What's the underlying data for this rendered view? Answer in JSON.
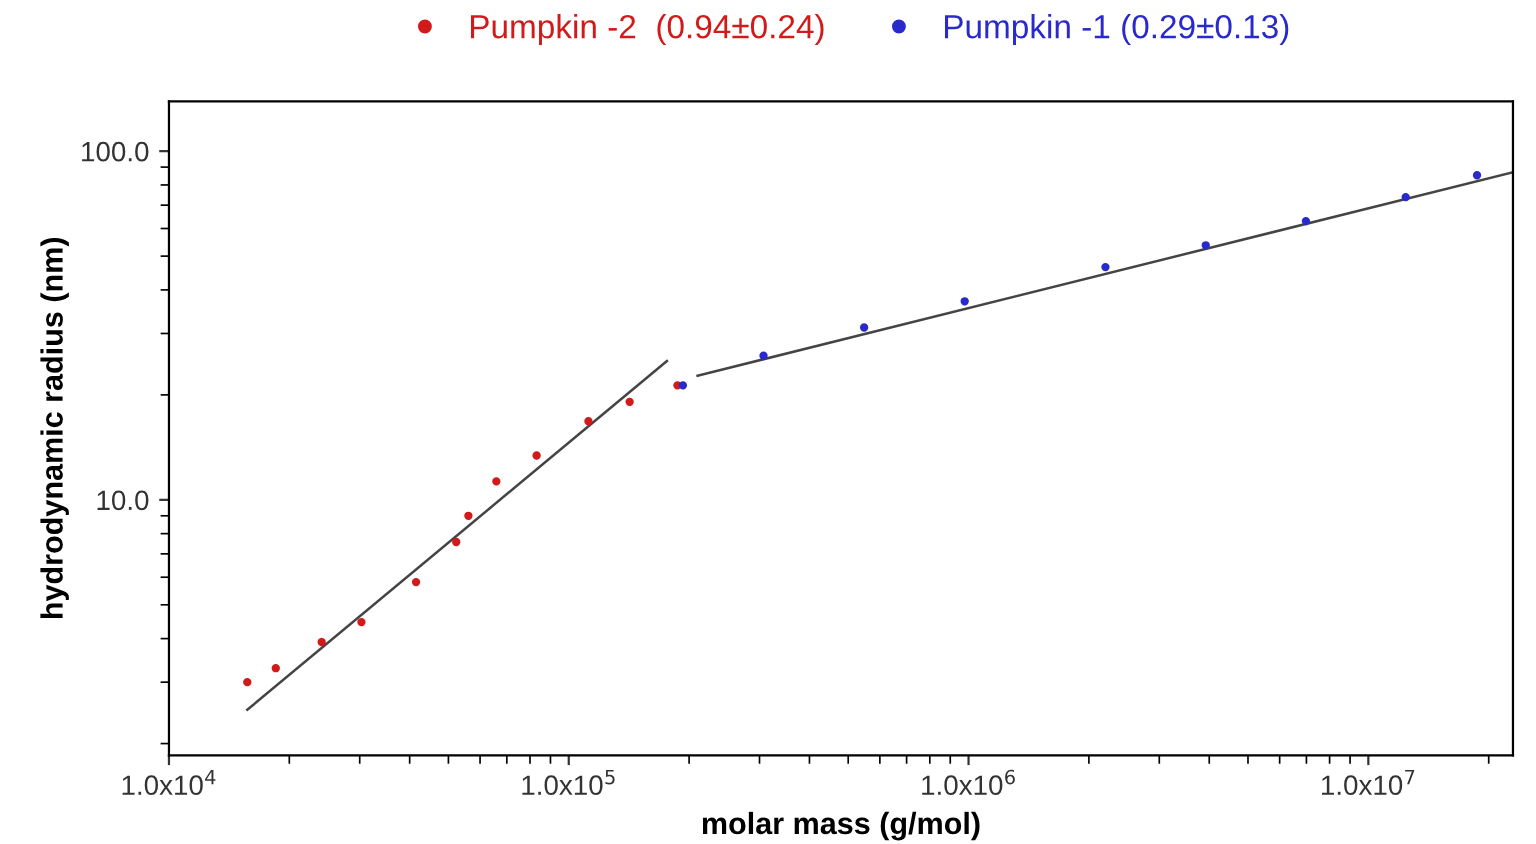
{
  "chart_data": {
    "type": "scatter",
    "xlabel": "molar mass (g/mol)",
    "ylabel": "hydrodynamic radius (nm)",
    "log": "xy",
    "grid": false,
    "legend": "top",
    "marker": "circle",
    "xlim": [
      10000,
      23000000
    ],
    "ylim": [
      1.85,
      139
    ],
    "xticks": [
      {
        "value": 10000,
        "label": "1.0x10$^{4}$"
      },
      {
        "value": 20000,
        "label": null
      },
      {
        "value": 30000,
        "label": null
      },
      {
        "value": 40000,
        "label": null
      },
      {
        "value": 50000,
        "label": null
      },
      {
        "value": 60000,
        "label": null
      },
      {
        "value": 70000,
        "label": null
      },
      {
        "value": 80000,
        "label": null
      },
      {
        "value": 90000,
        "label": null
      },
      {
        "value": 100000,
        "label": "1.0x10$^{5}$"
      },
      {
        "value": 200000,
        "label": null
      },
      {
        "value": 300000,
        "label": null
      },
      {
        "value": 400000,
        "label": null
      },
      {
        "value": 500000,
        "label": null
      },
      {
        "value": 600000,
        "label": null
      },
      {
        "value": 700000,
        "label": null
      },
      {
        "value": 800000,
        "label": null
      },
      {
        "value": 900000,
        "label": null
      },
      {
        "value": 1000000,
        "label": "1.0x10$^{6}$"
      },
      {
        "value": 2000000,
        "label": null
      },
      {
        "value": 3000000,
        "label": null
      },
      {
        "value": 4000000,
        "label": null
      },
      {
        "value": 5000000,
        "label": null
      },
      {
        "value": 6000000,
        "label": null
      },
      {
        "value": 7000000,
        "label": null
      },
      {
        "value": 8000000,
        "label": null
      },
      {
        "value": 9000000,
        "label": null
      },
      {
        "value": 10000000,
        "label": "1.0x10$^{7}$"
      },
      {
        "value": 20000000,
        "label": null
      }
    ],
    "yticks": [
      {
        "value": 2,
        "label": null
      },
      {
        "value": 3,
        "label": null
      },
      {
        "value": 4,
        "label": null
      },
      {
        "value": 5,
        "label": null
      },
      {
        "value": 6,
        "label": null
      },
      {
        "value": 7,
        "label": null
      },
      {
        "value": 8,
        "label": null
      },
      {
        "value": 9,
        "label": null
      },
      {
        "value": 10,
        "label": "10.0"
      },
      {
        "value": 20,
        "label": null
      },
      {
        "value": 30,
        "label": null
      },
      {
        "value": 40,
        "label": null
      },
      {
        "value": 50,
        "label": null
      },
      {
        "value": 60,
        "label": null
      },
      {
        "value": 70,
        "label": null
      },
      {
        "value": 80,
        "label": null
      },
      {
        "value": 90,
        "label": null
      },
      {
        "value": 100,
        "label": "100.0"
      }
    ],
    "series": [
      {
        "name": "Pumpkin -2  (0.94±0.24)",
        "color": "#d21a1a",
        "x": [
          15700,
          18500,
          24100,
          30300,
          41500,
          52300,
          56100,
          65900,
          83100,
          112000,
          142000,
          187000
        ],
        "values": [
          3.0,
          3.29,
          3.91,
          4.46,
          5.81,
          7.57,
          9.0,
          11.3,
          13.4,
          16.8,
          19.1,
          21.3
        ]
      },
      {
        "name": "Pumpkin -1 (0.29±0.13)",
        "color": "#2a2acc",
        "x": [
          193000,
          307000,
          548000,
          978000,
          2200000,
          3920000,
          6980000,
          12400000,
          18700000
        ],
        "values": [
          21.3,
          25.9,
          31.2,
          37.1,
          46.5,
          53.7,
          63.0,
          73.8,
          85.3
        ]
      },
      {
        "type": "line",
        "color": "#444444",
        "marker": "none",
        "x": [
          15700,
          176000
        ],
        "values": [
          2.5,
          25
        ]
      },
      {
        "type": "line",
        "color": "#444444",
        "marker": "none",
        "x": [
          210000,
          23000000
        ],
        "values": [
          22.7,
          87
        ]
      }
    ]
  }
}
